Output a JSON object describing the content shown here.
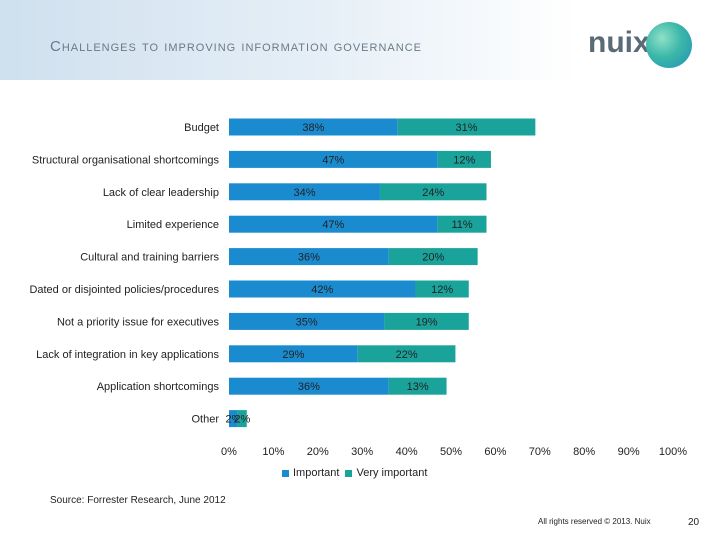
{
  "header": {
    "title": "Challenges to improving information governance"
  },
  "logo": {
    "text": "nuix"
  },
  "chart_data": {
    "type": "bar",
    "orientation": "horizontal",
    "stacked": true,
    "categories": [
      "Budget",
      "Structural organisational shortcomings",
      "Lack of clear leadership",
      "Limited experience",
      "Cultural and training barriers",
      "Dated or disjointed policies/procedures",
      "Not a priority issue for executives",
      "Lack of integration in key applications",
      "Application shortcomings",
      "Other"
    ],
    "series": [
      {
        "name": "Important",
        "color": "#1b8bd0",
        "values": [
          38,
          47,
          34,
          47,
          36,
          42,
          35,
          29,
          36,
          2
        ]
      },
      {
        "name": "Very important",
        "color": "#1aa39b",
        "values": [
          31,
          12,
          24,
          11,
          20,
          12,
          19,
          22,
          13,
          2
        ]
      }
    ],
    "xlim": [
      0,
      100
    ],
    "xticks": [
      "0%",
      "10%",
      "20%",
      "30%",
      "40%",
      "50%",
      "60%",
      "70%",
      "80%",
      "90%",
      "100%"
    ],
    "legend": "bottom",
    "grid": false
  },
  "footer": {
    "source": "Source: Forrester Research, June 2012",
    "rights": "All rights reserved © 2013. Nuix",
    "page": "20"
  }
}
